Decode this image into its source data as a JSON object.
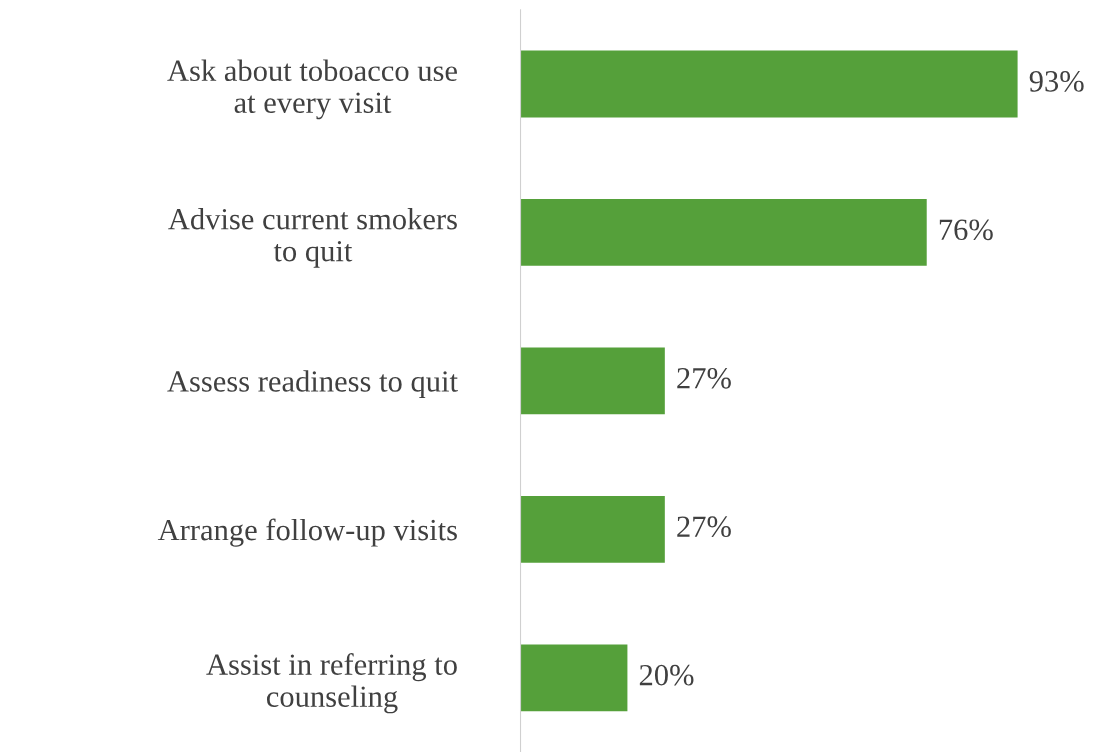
{
  "chart_data": {
    "type": "bar",
    "orientation": "horizontal",
    "categories": [
      "Ask about toboacco use\nat every visit",
      "Advise current smokers\nto quit",
      "Assess readiness to quit",
      "Arrange follow-up visits",
      "Assist in referring to\ncounseling"
    ],
    "values": [
      93,
      76,
      27,
      27,
      20
    ],
    "value_labels": [
      "93%",
      "76%",
      "27%",
      "27%",
      "20%"
    ],
    "color": "#55a03a",
    "grid": false
  }
}
